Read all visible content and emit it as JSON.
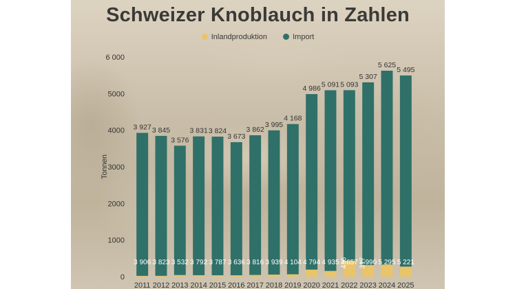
{
  "title": "Schweizer Knoblauch in Zahlen",
  "chart_data": {
    "type": "bar",
    "stacked": true,
    "title": "Schweizer Knoblauch in Zahlen",
    "ylabel": "Tonnen",
    "xlabel": "",
    "ylim": [
      0,
      6000
    ],
    "yticks": [
      "0",
      "1000",
      "2000",
      "3000",
      "4000",
      "5000",
      "6 000"
    ],
    "legend_position": "top-center",
    "grid": false,
    "categories": [
      "2011",
      "2012",
      "2013",
      "2014",
      "2015",
      "2016",
      "2017",
      "2018",
      "2019",
      "2020",
      "2021",
      "2022",
      "2023",
      "2024",
      "2025"
    ],
    "series": [
      {
        "name": "Inlandproduktion",
        "color": "#e9c46a",
        "values": [
          21,
          22,
          44,
          39,
          37,
          37,
          46,
          56,
          64,
          192,
          156,
          436,
          317,
          330,
          274
        ],
        "labels": [
          "",
          "",
          "",
          "",
          "",
          "",
          "",
          "",
          "",
          "",
          "",
          "436",
          "317",
          "",
          ""
        ]
      },
      {
        "name": "Import",
        "color": "#2f7069",
        "values": [
          3906,
          3823,
          3532,
          3792,
          3787,
          3636,
          3816,
          3939,
          4104,
          4794,
          4935,
          4657,
          4990,
          5295,
          5221
        ],
        "labels": [
          "3 906",
          "3 823",
          "3 532",
          "3 792",
          "3 787",
          "3 636",
          "3 816",
          "3 939",
          "4 104",
          "4 794",
          "4 935",
          "4 657",
          "4 990",
          "5 295",
          "5 221"
        ]
      }
    ],
    "totals": [
      3927,
      3845,
      3576,
      3831,
      3824,
      3673,
      3862,
      3995,
      4168,
      4986,
      5091,
      5093,
      5307,
      5625,
      5495
    ],
    "total_labels": [
      "3 927",
      "3 845",
      "3 576",
      "3 831",
      "3 824",
      "3 673",
      "3 862",
      "3 995",
      "4 168",
      "4 986",
      "5 091",
      "5 093",
      "5 307",
      "5 625",
      "5 495"
    ]
  }
}
